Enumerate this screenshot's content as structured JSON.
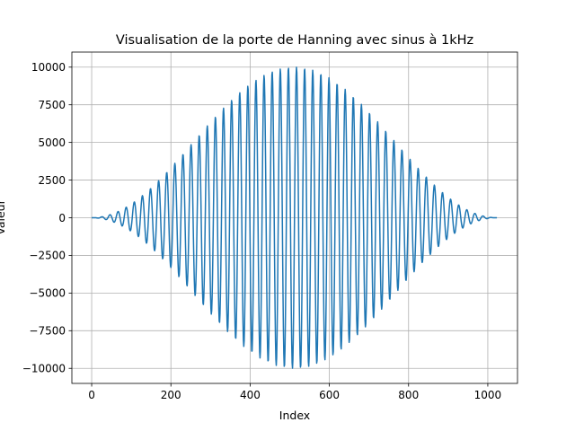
{
  "chart_data": {
    "type": "line",
    "title": "Visualisation de la porte de Hanning avec sinus à 1kHz",
    "xlabel": "Index",
    "ylabel": "Valeur",
    "xlim": [
      -50,
      1075
    ],
    "ylim": [
      -11000,
      11000
    ],
    "x_ticks": [
      0,
      200,
      400,
      600,
      800,
      1000
    ],
    "x_tick_labels": [
      "0",
      "200",
      "400",
      "600",
      "800",
      "1000"
    ],
    "y_ticks": [
      10000,
      7500,
      5000,
      2500,
      0,
      -2500,
      -5000,
      -7500,
      -10000
    ],
    "y_tick_labels": [
      "10000",
      "7500",
      "5000",
      "2500",
      "0",
      "−2500",
      "−5000",
      "−7500",
      "−10000"
    ],
    "grid": true,
    "series": [
      {
        "color": "#1f77b4",
        "n_points": 1024,
        "x_start": 0,
        "x_end": 1023,
        "envelope": "hanning",
        "amplitude": 10000,
        "cycles": 50
      }
    ]
  }
}
